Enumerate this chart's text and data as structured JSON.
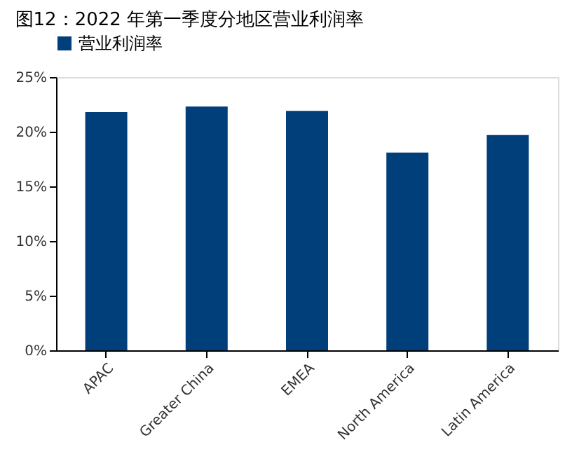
{
  "chart_data": {
    "type": "bar",
    "title": "图12：2022 年第一季度分地区营业利润率",
    "categories": [
      "APAC",
      "Greater China",
      "EMEA",
      "North America",
      "Latin America"
    ],
    "series": [
      {
        "name": "营业利润率",
        "color": "#003f7a",
        "values": [
          21.8,
          22.3,
          21.9,
          18.1,
          19.7
        ]
      }
    ],
    "ylim": [
      0,
      25
    ],
    "yticks": [
      {
        "value": 0,
        "label": "0%"
      },
      {
        "value": 5,
        "label": "5%"
      },
      {
        "value": 10,
        "label": "10%"
      },
      {
        "value": 15,
        "label": "15%"
      },
      {
        "value": 20,
        "label": "20%"
      },
      {
        "value": 25,
        "label": "25%"
      }
    ],
    "grid": false,
    "legend": "top"
  }
}
